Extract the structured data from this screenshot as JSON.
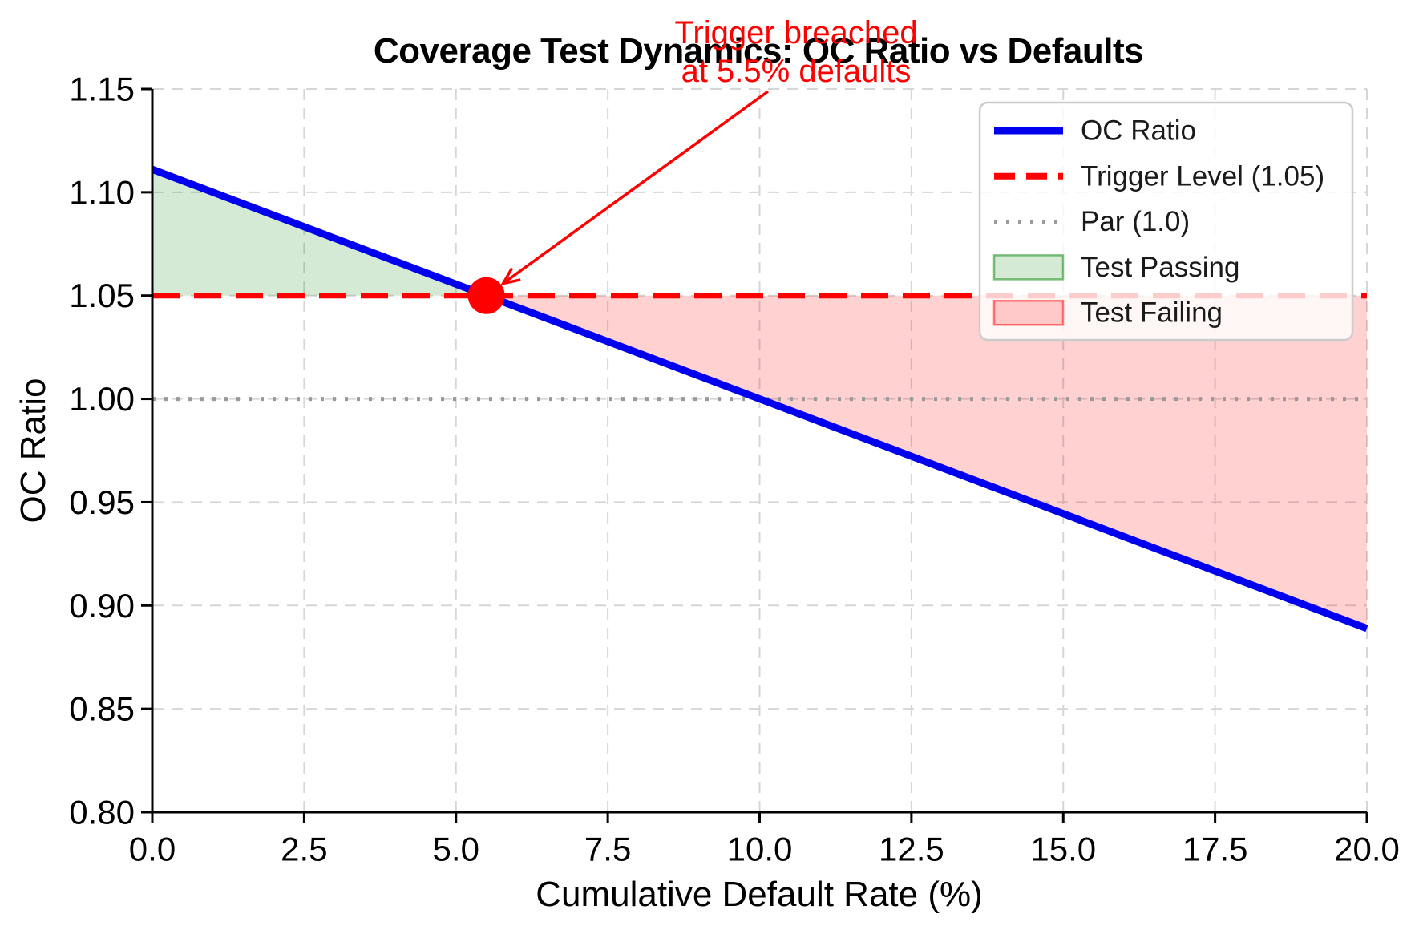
{
  "chart_data": {
    "type": "line",
    "title": "Coverage Test Dynamics: OC Ratio vs Defaults",
    "xlabel": "Cumulative Default Rate (%)",
    "ylabel": "OC Ratio",
    "xlim": [
      0.0,
      20.0
    ],
    "ylim": [
      0.8,
      1.15
    ],
    "grid": true,
    "xtick_labels": [
      "0.0",
      "2.5",
      "5.0",
      "7.5",
      "10.0",
      "12.5",
      "15.0",
      "17.5",
      "20.0"
    ],
    "ytick_labels": [
      "0.80",
      "0.85",
      "0.90",
      "0.95",
      "1.00",
      "1.05",
      "1.10",
      "1.15"
    ],
    "series": [
      {
        "name": "OC Ratio",
        "kind": "line",
        "color": "#0000ee",
        "linestyle": "solid",
        "linewidth": 9,
        "x": [
          0.0,
          5.5,
          20.0
        ],
        "y": [
          1.1111,
          1.05,
          0.8889
        ]
      },
      {
        "name": "Trigger Level (1.05)",
        "kind": "hline",
        "color": "#ff0000",
        "linestyle": "dashed",
        "linewidth": 7,
        "y": 1.05
      },
      {
        "name": "Par (1.0)",
        "kind": "hline",
        "color": "#999999",
        "linestyle": "dotted",
        "linewidth": 5,
        "y": 1.0
      }
    ],
    "regions": [
      {
        "name": "Test Passing",
        "fill": "rgba(0,128,0,0.17)",
        "x_range": [
          0.0,
          5.5
        ],
        "upper": "oc",
        "lower": 1.05
      },
      {
        "name": "Test Failing",
        "fill": "rgba(255,0,0,0.18)",
        "x_range": [
          5.5,
          20.0
        ],
        "upper": 1.05,
        "lower": "oc"
      }
    ],
    "breach_point": {
      "x": 5.5,
      "y": 1.05,
      "color": "#ff0000",
      "radius": 23
    },
    "annotation": {
      "line1": "Trigger breached",
      "line2": "at 5.5% defaults",
      "color": "#ff0000",
      "points_to": {
        "x": 5.5,
        "y": 1.05
      }
    },
    "legend": {
      "position": "upper right",
      "entries": [
        {
          "label": "OC Ratio",
          "swatch": "line",
          "color": "#0000ee",
          "dash": "none",
          "linewidth": 9
        },
        {
          "label": "Trigger Level (1.05)",
          "swatch": "line",
          "color": "#ff0000",
          "dash": "26 14",
          "linewidth": 8
        },
        {
          "label": "Par (1.0)",
          "swatch": "line",
          "color": "#999999",
          "dash": "4 11",
          "linewidth": 5
        },
        {
          "label": "Test Passing",
          "swatch": "patch",
          "fill": "rgba(0,128,0,0.17)",
          "edge": "rgba(0,128,0,0.5)"
        },
        {
          "label": "Test Failing",
          "swatch": "patch",
          "fill": "rgba(255,0,0,0.18)",
          "edge": "rgba(255,0,0,0.5)"
        }
      ]
    },
    "style": {
      "gridline_color": "#d6d6d6",
      "gridline_dash": "14 10",
      "spine_color": "#000000",
      "legend_border": "#cccccc",
      "legend_bg": "rgba(255,255,255,0.8)"
    }
  }
}
